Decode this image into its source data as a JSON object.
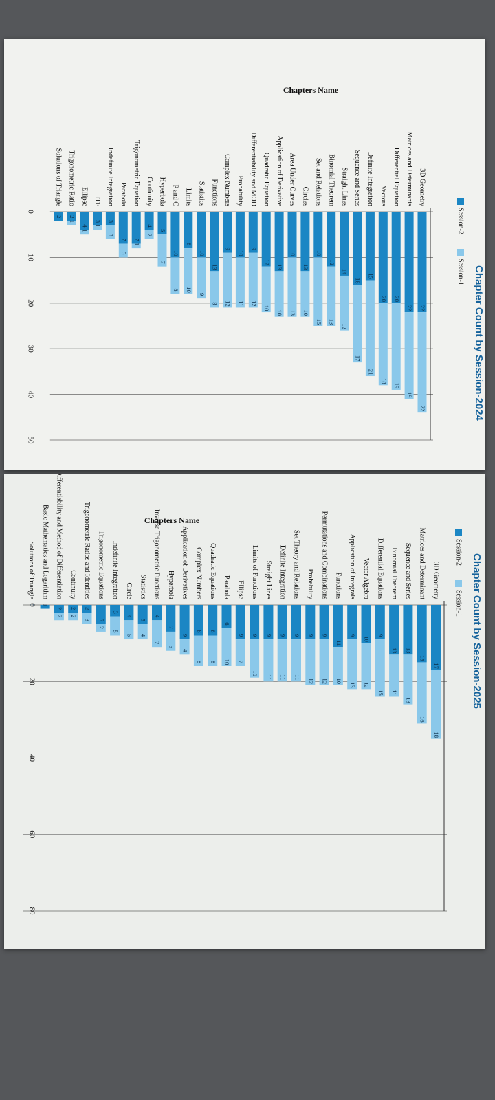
{
  "legend": {
    "session2": "Session-2",
    "session1": "Session-1"
  },
  "colors": {
    "session2": "#1b86c4",
    "session1": "#8ac8ea",
    "grid": "#3a3a3a",
    "title": "#15629b"
  },
  "chart_data": [
    {
      "type": "bar",
      "orientation": "horizontal-stacked",
      "title": "Chapter Count by Session-2024",
      "category_axis_label": "Chapters Name",
      "ticks": [
        "0",
        "10",
        "20",
        "30",
        "40",
        "50"
      ],
      "xlim": [
        0,
        50
      ],
      "legend_placement": "top",
      "categories": [
        "3D Geometry",
        "Matrices and Determinants",
        "Differential Equation",
        "Vectors",
        "Definite Integration",
        "Sequence and Series",
        "Straight Lines",
        "Binomial Theorem",
        "Set and Relations",
        "Circles",
        "Area Under Curves",
        "Application of Derivative",
        "Quadratic Equation",
        "Differentiability and MOD",
        "Probability",
        "Complex Numbers",
        "Functions",
        "Statistics",
        "Limits",
        "P and C",
        "Hyperbola",
        "Continuity",
        "Trigonometric Equation",
        "Parabola",
        "Indefinite Integration",
        "ITF",
        "Ellipse",
        "Trigonometric Ratio",
        "Solutions of Triangle"
      ],
      "series": [
        {
          "name": "Session-2",
          "values": [
            22,
            22,
            20,
            20,
            15,
            16,
            14,
            12,
            10,
            13,
            10,
            13,
            12,
            9,
            10,
            9,
            13,
            10,
            8,
            10,
            5,
            4,
            7,
            7,
            3,
            3,
            4,
            2,
            2
          ]
        },
        {
          "name": "Session-1",
          "values": [
            22,
            19,
            19,
            18,
            21,
            17,
            12,
            13,
            15,
            10,
            13,
            10,
            10,
            12,
            11,
            12,
            8,
            9,
            10,
            8,
            7,
            2,
            1,
            3,
            3,
            1,
            1,
            1,
            0
          ]
        }
      ]
    },
    {
      "type": "bar",
      "orientation": "horizontal-stacked",
      "title": "Chapter Count by Session-2025",
      "category_axis_label": "Chapters Name",
      "ticks": [
        "0",
        "20",
        "40",
        "60",
        "80"
      ],
      "xlim": [
        0,
        80
      ],
      "legend_placement": "top",
      "categories": [
        "3D Geometry",
        "Matrices and Determinant",
        "Sequence and Series",
        "Binomial Theorem",
        "Differential Equations",
        "Vector Algebra",
        "Application of Integrals",
        "Functions",
        "Permutations and Combinations",
        "Probability",
        "Set Theory and Relations",
        "Definite Integration",
        "Straight Lines",
        "Limits of Functions",
        "Ellipse",
        "Parabola",
        "Quadratic Equations",
        "Complex Numbers",
        "Application of Derivatives",
        "Hyperbola",
        "Inverse Trigonometric Functions",
        "Statistics",
        "Circle",
        "Indefinite Integration",
        "Trigonometric Equations",
        "Trigonometric Ratios and Identities",
        "Continuity",
        "Differentiability and Method of Differentiation",
        "Basic Mathematics and Logarithm",
        "Solutions of Triangle"
      ],
      "series": [
        {
          "name": "Session-2",
          "values": [
            17,
            15,
            13,
            13,
            9,
            10,
            9,
            11,
            9,
            9,
            9,
            9,
            9,
            9,
            9,
            6,
            8,
            8,
            9,
            7,
            4,
            5,
            4,
            3,
            5,
            2,
            2,
            2,
            1,
            0
          ]
        },
        {
          "name": "Session-1",
          "values": [
            18,
            16,
            13,
            11,
            15,
            12,
            13,
            10,
            12,
            12,
            11,
            11,
            11,
            10,
            7,
            10,
            8,
            8,
            4,
            5,
            7,
            4,
            5,
            5,
            2,
            3,
            2,
            2,
            0,
            0
          ]
        }
      ]
    }
  ]
}
